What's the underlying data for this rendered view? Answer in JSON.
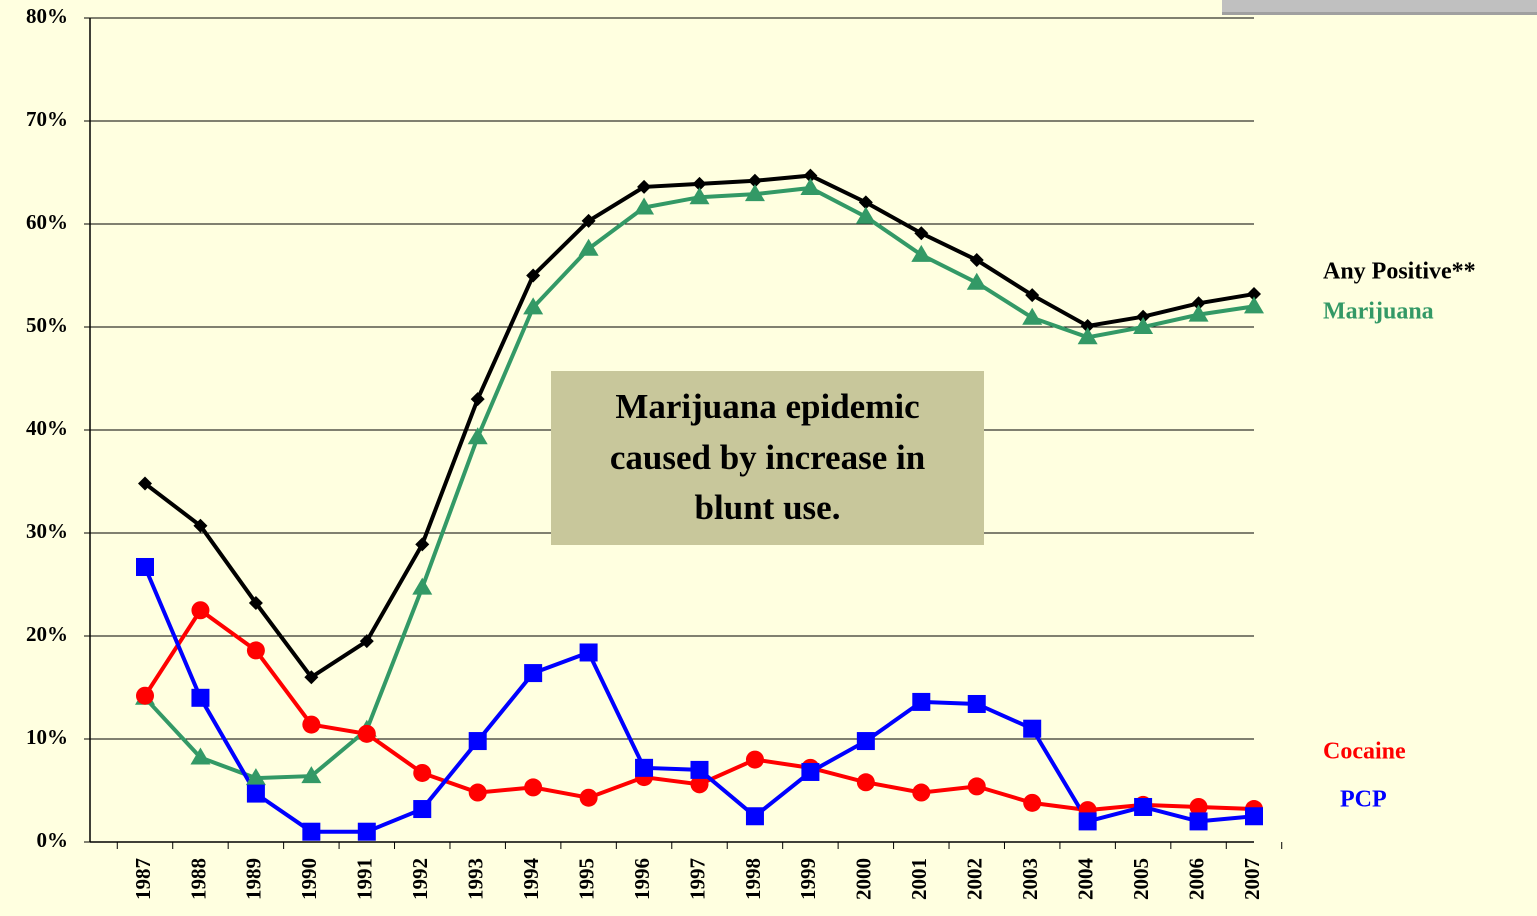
{
  "chart_data": {
    "type": "line",
    "categories": [
      "1987",
      "1988",
      "1989",
      "1990",
      "1991",
      "1992",
      "1993",
      "1994",
      "1995",
      "1996",
      "1997",
      "1998",
      "1999",
      "2000",
      "2001",
      "2002",
      "2003",
      "2004",
      "2005",
      "2006",
      "2007"
    ],
    "series": [
      {
        "name": "Any Positive**",
        "color": "#000000",
        "marker": "diamond",
        "values": [
          34.8,
          30.7,
          23.2,
          16.0,
          19.5,
          28.9,
          43.0,
          55.0,
          60.3,
          63.6,
          63.9,
          64.2,
          64.7,
          62.1,
          59.1,
          56.5,
          53.1,
          50.1,
          51.0,
          52.3,
          53.2
        ]
      },
      {
        "name": "Marijuana",
        "color": "#339966",
        "marker": "triangle",
        "values": [
          14.0,
          8.2,
          6.2,
          6.4,
          10.9,
          24.7,
          39.3,
          51.9,
          57.6,
          61.6,
          62.6,
          62.9,
          63.5,
          60.7,
          57.0,
          54.3,
          50.9,
          49.0,
          50.0,
          51.2,
          52.0
        ]
      },
      {
        "name": "Cocaine",
        "color": "#ff0000",
        "marker": "circle",
        "values": [
          14.2,
          22.5,
          18.6,
          11.4,
          10.5,
          6.7,
          4.8,
          5.3,
          4.3,
          6.3,
          5.6,
          8.0,
          7.2,
          5.8,
          4.8,
          5.4,
          3.8,
          3.1,
          3.6,
          3.4,
          3.2
        ]
      },
      {
        "name": "PCP",
        "color": "#0000ff",
        "marker": "square",
        "values": [
          26.7,
          14.0,
          4.7,
          1.0,
          1.0,
          3.2,
          9.8,
          16.4,
          18.4,
          7.2,
          7.0,
          2.5,
          6.8,
          9.8,
          13.6,
          13.4,
          11.0,
          2.0,
          3.4,
          2.0,
          2.5
        ]
      }
    ],
    "annotation": "Marijuana epidemic caused by increase in blunt use.",
    "ylim": [
      0,
      80
    ],
    "yticks": [
      {
        "value": 0,
        "label": "0%"
      },
      {
        "value": 10,
        "label": "10%"
      },
      {
        "value": 20,
        "label": "20%"
      },
      {
        "value": 30,
        "label": "30%"
      },
      {
        "value": 40,
        "label": "40%"
      },
      {
        "value": 50,
        "label": "50%"
      },
      {
        "value": 60,
        "label": "60%"
      },
      {
        "value": 70,
        "label": "70%"
      },
      {
        "value": 80,
        "label": "80%"
      }
    ],
    "grid": true
  }
}
